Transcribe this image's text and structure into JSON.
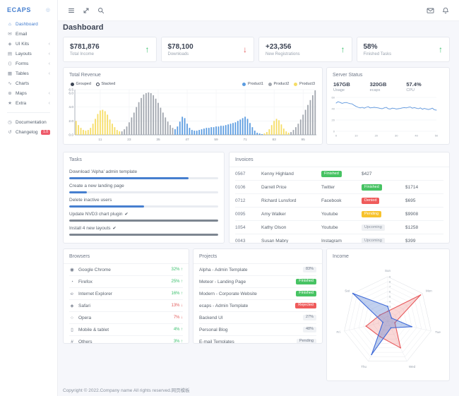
{
  "app": {
    "page_title": "Dashboard",
    "footer": "Copyright © 2022.Company name All rights reserved.网页模板"
  },
  "sidebar": {
    "logo": "ECAPS",
    "logo_gear_glyph": "◎",
    "chevron_glyph": "‹",
    "items": [
      {
        "label": "Dashboard",
        "icon": "home-icon",
        "glyph": "⌂",
        "active": true,
        "chevron": false
      },
      {
        "label": "Email",
        "icon": "email-icon",
        "glyph": "✉",
        "chevron": false
      },
      {
        "label": "UI Kits",
        "icon": "uikits-icon",
        "glyph": "◈",
        "chevron": true
      },
      {
        "label": "Layouts",
        "icon": "layouts-icon",
        "glyph": "▤",
        "chevron": true
      },
      {
        "label": "Forms",
        "icon": "forms-code-icon",
        "glyph": "⟨⟩",
        "chevron": true
      },
      {
        "label": "Tables",
        "icon": "tables-icon",
        "glyph": "▦",
        "chevron": true
      },
      {
        "label": "Charts",
        "icon": "charts-icon",
        "glyph": "∿",
        "chevron": false
      },
      {
        "label": "Maps",
        "icon": "maps-globe-icon",
        "glyph": "⊕",
        "chevron": true
      },
      {
        "label": "Extra",
        "icon": "star-icon",
        "glyph": "★",
        "chevron": true
      }
    ],
    "footer_items": [
      {
        "label": "Documentation",
        "icon": "documentation-clock-icon",
        "glyph": "◷"
      },
      {
        "label": "Changelog",
        "icon": "changelog-icon",
        "glyph": "↺",
        "badge": "1.0"
      }
    ]
  },
  "header_icons": [
    "menu-icon",
    "fullscreen-icon",
    "search-icon",
    "mail-icon",
    "bell-icon"
  ],
  "kpis": [
    {
      "value": "$781,876",
      "label": "Total Income",
      "trend": "up"
    },
    {
      "value": "$78,100",
      "label": "Downloads",
      "trend": "down"
    },
    {
      "value": "+23,356",
      "label": "New Registrations",
      "trend": "up"
    },
    {
      "value": "58%",
      "label": "Finished Tasks",
      "trend": "up"
    }
  ],
  "server": {
    "title": "Server Status",
    "stats": [
      {
        "value": "167GB",
        "label": "Usage"
      },
      {
        "value": "320GB",
        "label": "ecaps"
      },
      {
        "value": "57.4%",
        "label": "CPU"
      }
    ]
  },
  "tasks": {
    "title": "Tasks",
    "items": [
      {
        "label": "Download 'Alpha' admin template",
        "progress": 80,
        "done": false
      },
      {
        "label": "Create a new landing page",
        "progress": 12,
        "done": false
      },
      {
        "label": "Delete inactive users",
        "progress": 50,
        "done": false
      },
      {
        "label": "Update NVD3 chart plugin",
        "progress": 100,
        "done": true
      },
      {
        "label": "Install 4 new layouts",
        "progress": 100,
        "done": true
      }
    ]
  },
  "invoices": {
    "title": "Invoices",
    "rows": [
      [
        "0567",
        "Kenny Highland",
        {
          "badge": "Finished",
          "type": "green"
        },
        "$427",
        ""
      ],
      [
        "0106",
        "Darrell Price",
        "Twitter",
        {
          "badge": "Finished",
          "type": "green"
        },
        "$1714"
      ],
      [
        "0712",
        "Richard Lunsford",
        "Facebook",
        {
          "badge": "Denied",
          "type": "red"
        },
        "$695"
      ],
      [
        "0095",
        "Amy Walker",
        "Youtube",
        {
          "badge": "Pending",
          "type": "yellow"
        },
        "$9908"
      ],
      [
        "1054",
        "Kathy Olson",
        "Youtube",
        {
          "badge": "Upcoming",
          "type": "gray"
        },
        "$1258"
      ],
      [
        "0043",
        "Susan Mabry",
        "Instagram",
        {
          "badge": "Upcoming",
          "type": "gray"
        },
        "$399"
      ]
    ]
  },
  "browsers": {
    "title": "Browsers",
    "rows": [
      {
        "name": "Google Chrome",
        "icon": "chrome-icon",
        "glyph": "◉",
        "value": "32%",
        "trend": "up"
      },
      {
        "name": "Firefox",
        "icon": "firefox-icon",
        "glyph": "◔",
        "value": "25%",
        "trend": "up"
      },
      {
        "name": "Internet Explorer",
        "icon": "ie-icon",
        "glyph": "℮",
        "value": "16%",
        "trend": "up"
      },
      {
        "name": "Safari",
        "icon": "safari-icon",
        "glyph": "◈",
        "value": "13%",
        "trend": "down"
      },
      {
        "name": "Opera",
        "icon": "opera-icon",
        "glyph": "○",
        "value": "7%",
        "trend": "down"
      },
      {
        "name": "Mobile & tablet",
        "icon": "mobile-icon",
        "glyph": "▯",
        "value": "4%",
        "trend": "up"
      },
      {
        "name": "Others",
        "icon": "others-icon",
        "glyph": "#",
        "value": "3%",
        "trend": "up"
      }
    ]
  },
  "projects": {
    "title": "Projects",
    "rows": [
      {
        "name": "Alpha - Admin Template",
        "badge": "83%",
        "type": "light"
      },
      {
        "name": "Meteor - Landing Page",
        "badge": "Finished",
        "type": "green"
      },
      {
        "name": "Modern - Corporate Website",
        "badge": "Finished",
        "type": "green"
      },
      {
        "name": "ecaps - Admin Template",
        "badge": "Rejected",
        "type": "red"
      },
      {
        "name": "Backend UI",
        "badge": "27%",
        "type": "light"
      },
      {
        "name": "Personal Blog",
        "badge": "48%",
        "type": "light"
      },
      {
        "name": "E-mail Templates",
        "badge": "Pending",
        "type": "light"
      }
    ]
  },
  "chart_data": [
    {
      "id": "total_revenue",
      "type": "bar",
      "title": "Total Revenue",
      "legend": [
        "Product1",
        "Product2",
        "Product3"
      ],
      "legend_colors": {
        "Product1": "#5b9ce0",
        "Product2": "#a2a7af",
        "Product3": "#f6dd66"
      },
      "modes": [
        {
          "label": "Grouped",
          "selected": true
        },
        {
          "label": "Stacked",
          "selected": false
        }
      ],
      "x_ticks": [
        11,
        23,
        35,
        47,
        59,
        71,
        83,
        95
      ],
      "y_ticks": [
        0,
        2,
        4,
        6,
        6.5
      ],
      "ylim": [
        0,
        6.5
      ],
      "xlim": [
        1,
        100
      ],
      "segments": [
        {
          "series": "Product3",
          "from": 1,
          "to": 19
        },
        {
          "series": "Product2",
          "from": 20,
          "to": 41
        },
        {
          "series": "Product1",
          "from": 42,
          "to": 78
        },
        {
          "series": "Product3",
          "from": 79,
          "to": 89
        },
        {
          "series": "Product2",
          "from": 90,
          "to": 100
        }
      ],
      "values": [
        2.0,
        1.4,
        1.0,
        0.7,
        0.6,
        0.7,
        1.0,
        1.6,
        2.3,
        3.0,
        3.5,
        3.6,
        3.4,
        2.9,
        2.2,
        1.6,
        1.1,
        0.7,
        0.5,
        0.5,
        0.8,
        1.2,
        1.8,
        2.5,
        3.2,
        4.0,
        4.7,
        5.3,
        5.8,
        6.0,
        6.1,
        6.0,
        5.7,
        5.2,
        4.6,
        3.9,
        3.2,
        2.5,
        1.9,
        1.4,
        1.0,
        0.8,
        1.2,
        1.9,
        2.6,
        2.4,
        1.6,
        1.0,
        0.7,
        0.6,
        0.6,
        0.7,
        0.8,
        0.9,
        1.0,
        1.0,
        1.1,
        1.1,
        1.2,
        1.2,
        1.3,
        1.3,
        1.4,
        1.5,
        1.6,
        1.7,
        1.8,
        2.0,
        2.2,
        2.4,
        2.6,
        2.3,
        1.7,
        1.1,
        0.6,
        0.3,
        0.2,
        0.1,
        0.2,
        0.4,
        0.8,
        1.4,
        2.0,
        2.3,
        2.1,
        1.5,
        0.9,
        0.5,
        0.3,
        0.4,
        0.7,
        1.1,
        1.6,
        2.2,
        2.9,
        3.6,
        4.3,
        5.0,
        5.7,
        6.4
      ]
    },
    {
      "id": "server_status",
      "type": "line",
      "title": "Server Status",
      "color": "#5f97dd",
      "x_ticks": [
        0,
        10,
        20,
        30,
        40,
        50
      ],
      "y_ticks": [
        0,
        20,
        40,
        60
      ],
      "ylim": [
        0,
        60
      ],
      "xlim": [
        0,
        50
      ],
      "values": [
        50,
        52.5,
        51,
        49.5,
        50.5,
        51,
        50,
        49,
        48.5,
        46,
        44,
        42.5,
        41.5,
        42.5,
        41,
        42.5,
        43.5,
        41.5,
        42,
        42.5,
        42,
        41.5,
        40.5,
        40,
        41.5,
        42.5,
        40,
        39.5,
        41,
        40.5,
        39.5,
        40,
        40.5,
        41.5,
        42,
        41.5,
        42.5,
        43,
        41,
        42,
        41,
        40,
        41.5,
        39,
        40.5,
        39.5,
        38.5,
        39.5,
        41,
        38,
        37.5
      ]
    },
    {
      "id": "income",
      "type": "radar",
      "title": "Income",
      "categories": [
        "Sun",
        "Mon",
        "Tue",
        "Wed",
        "Thu",
        "Fri",
        "Sat"
      ],
      "max": 9,
      "tick_labels": [
        3,
        4,
        5,
        6,
        7,
        8,
        9
      ],
      "series": [
        {
          "name": "series-red",
          "stroke": "#e8595c",
          "fill": "rgba(237,98,97,0.25)",
          "values": [
            2,
            8.5,
            1.5,
            6,
            3.5,
            4.5,
            2
          ]
        },
        {
          "name": "series-blue",
          "stroke": "#3f6ad8",
          "fill": "rgba(77,121,209,0.35)",
          "values": [
            3,
            1,
            5,
            1.5,
            7.5,
            1,
            9
          ]
        }
      ]
    }
  ]
}
